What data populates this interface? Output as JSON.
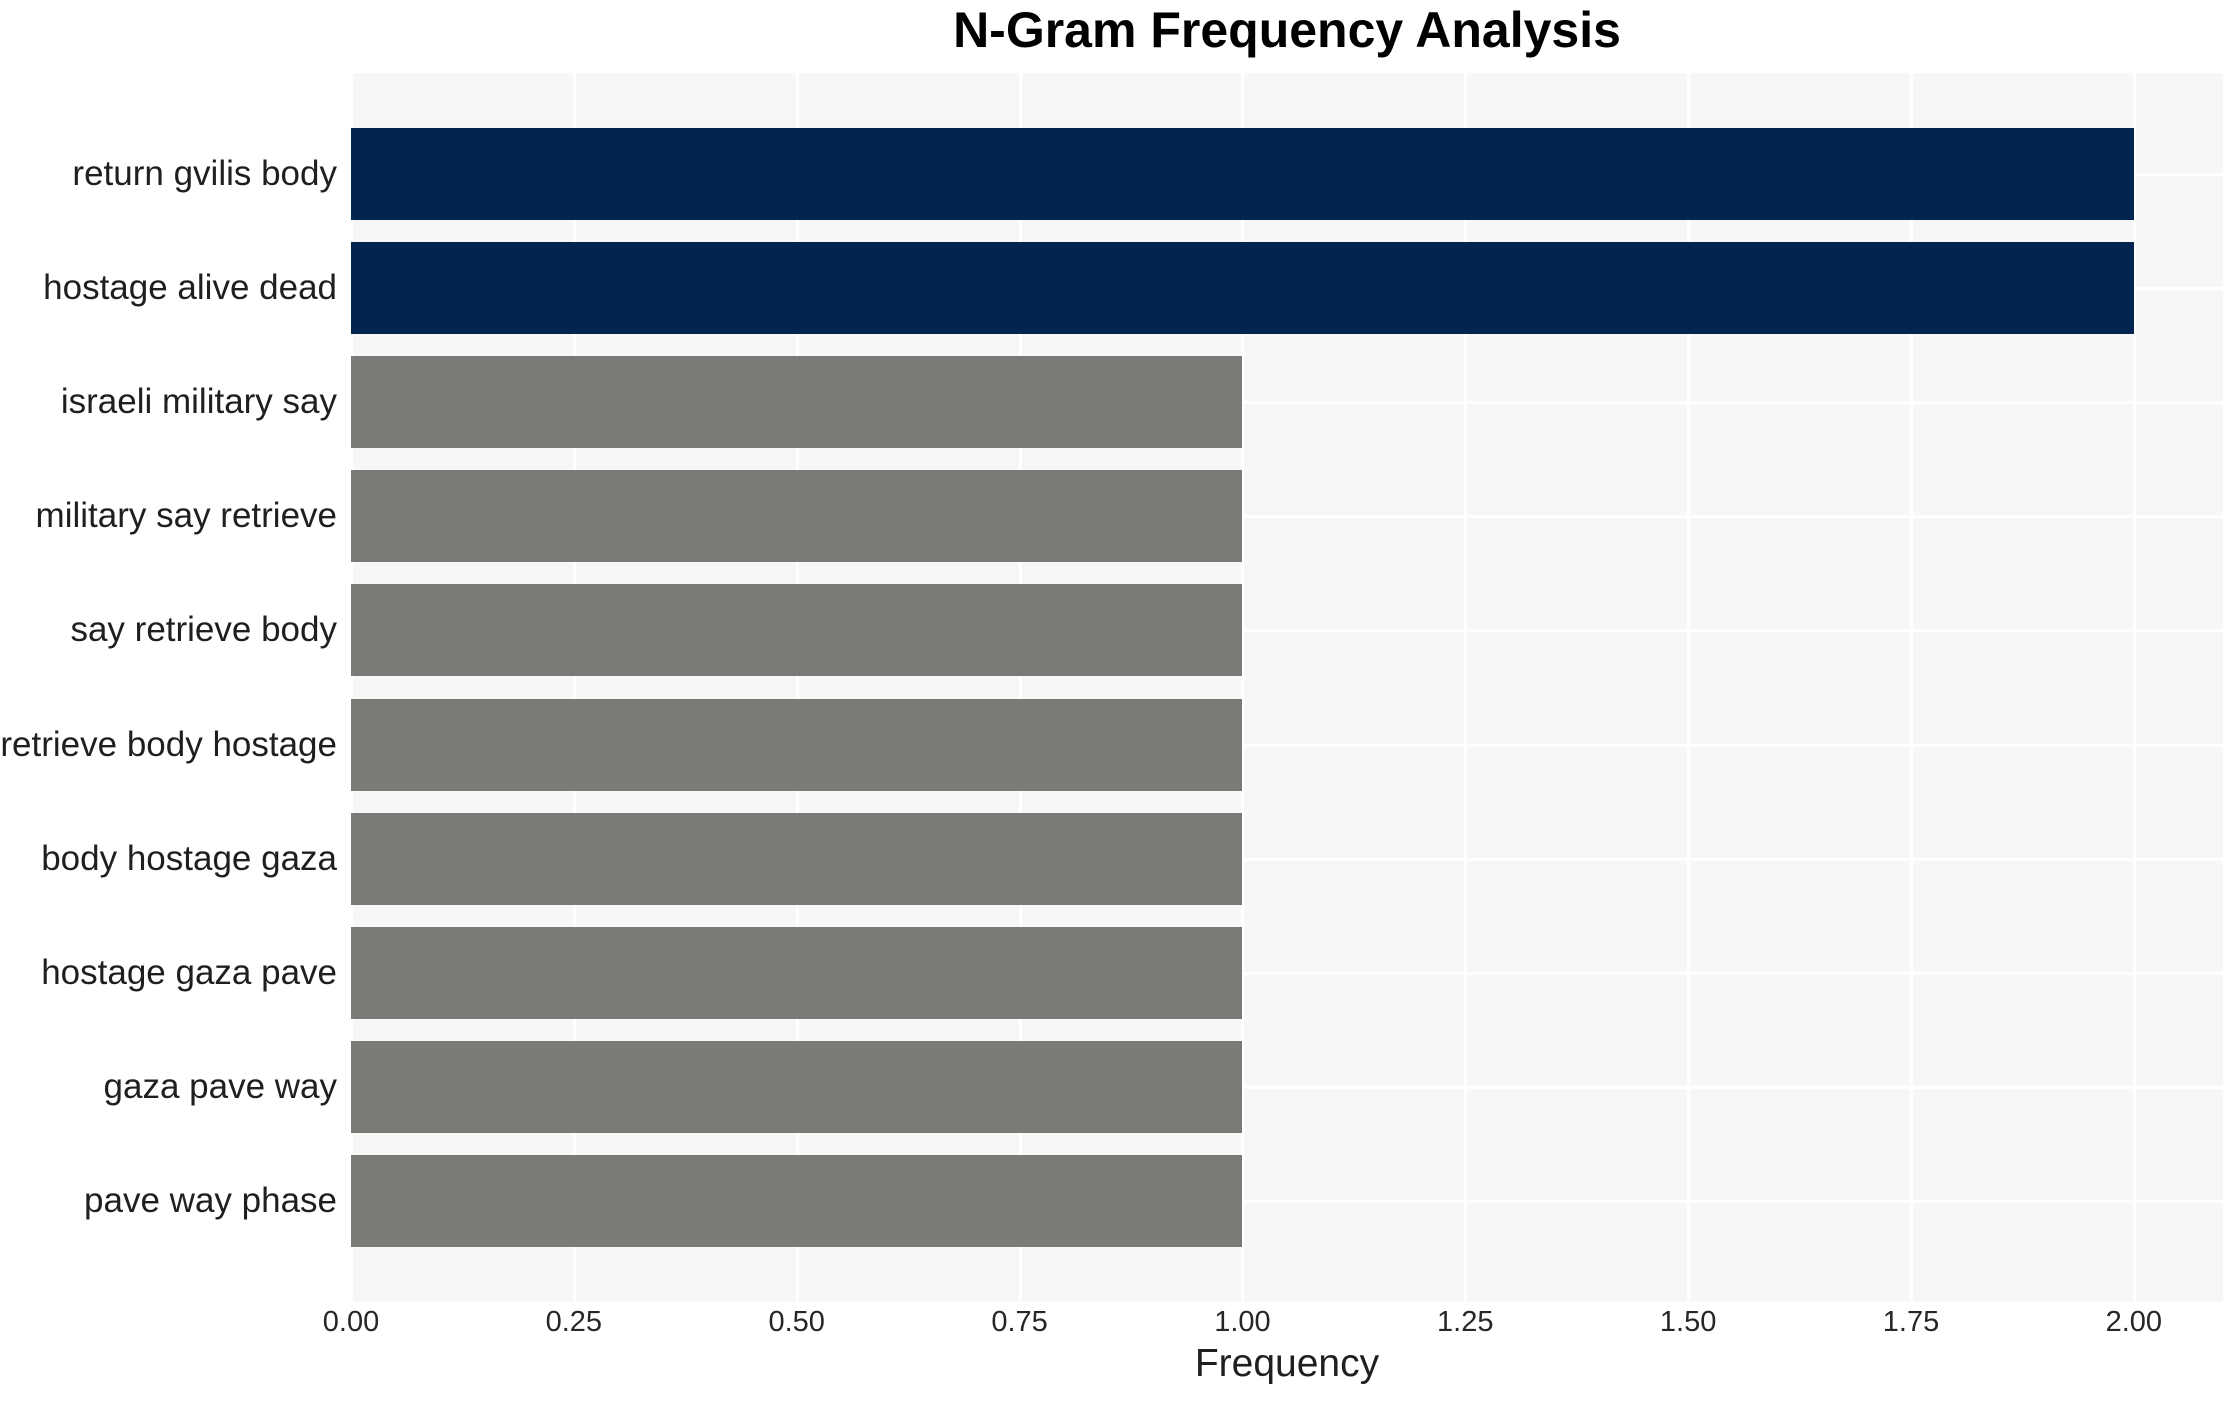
{
  "chart_data": {
    "type": "bar",
    "orientation": "horizontal",
    "title": "N-Gram Frequency Analysis",
    "xlabel": "Frequency",
    "ylabel": "",
    "categories": [
      "return gvilis body",
      "hostage alive dead",
      "israeli military say",
      "military say retrieve",
      "say retrieve body",
      "retrieve body hostage",
      "body hostage gaza",
      "hostage gaza pave",
      "gaza pave way",
      "pave way phase"
    ],
    "values": [
      2,
      2,
      1,
      1,
      1,
      1,
      1,
      1,
      1,
      1
    ],
    "bar_colors": [
      "#01254e",
      "#01254e",
      "#7b7a76",
      "#7b7a76",
      "#7b7a76",
      "#7b7a76",
      "#7b7a76",
      "#7b7a76",
      "#7b7a76",
      "#7b7a76"
    ],
    "xlim": [
      0,
      2.1
    ],
    "xticks": [
      0,
      0.25,
      0.5,
      0.75,
      1.0,
      1.25,
      1.5,
      1.75,
      2.0
    ],
    "xtick_labels": [
      "0.00",
      "0.25",
      "0.50",
      "0.75",
      "1.00",
      "1.25",
      "1.50",
      "1.75",
      "2.00"
    ],
    "grid": "both",
    "legend": "none",
    "colors": {
      "highlight_bar": "#01254e",
      "default_bar": "#7b7a76",
      "plot_background": "#f7f7f7",
      "gridline": "#ffffff",
      "figure_background": "#ffffff",
      "tick_text": "#262626",
      "label_text": "#1f1f1f",
      "title_text": "#000000"
    }
  }
}
